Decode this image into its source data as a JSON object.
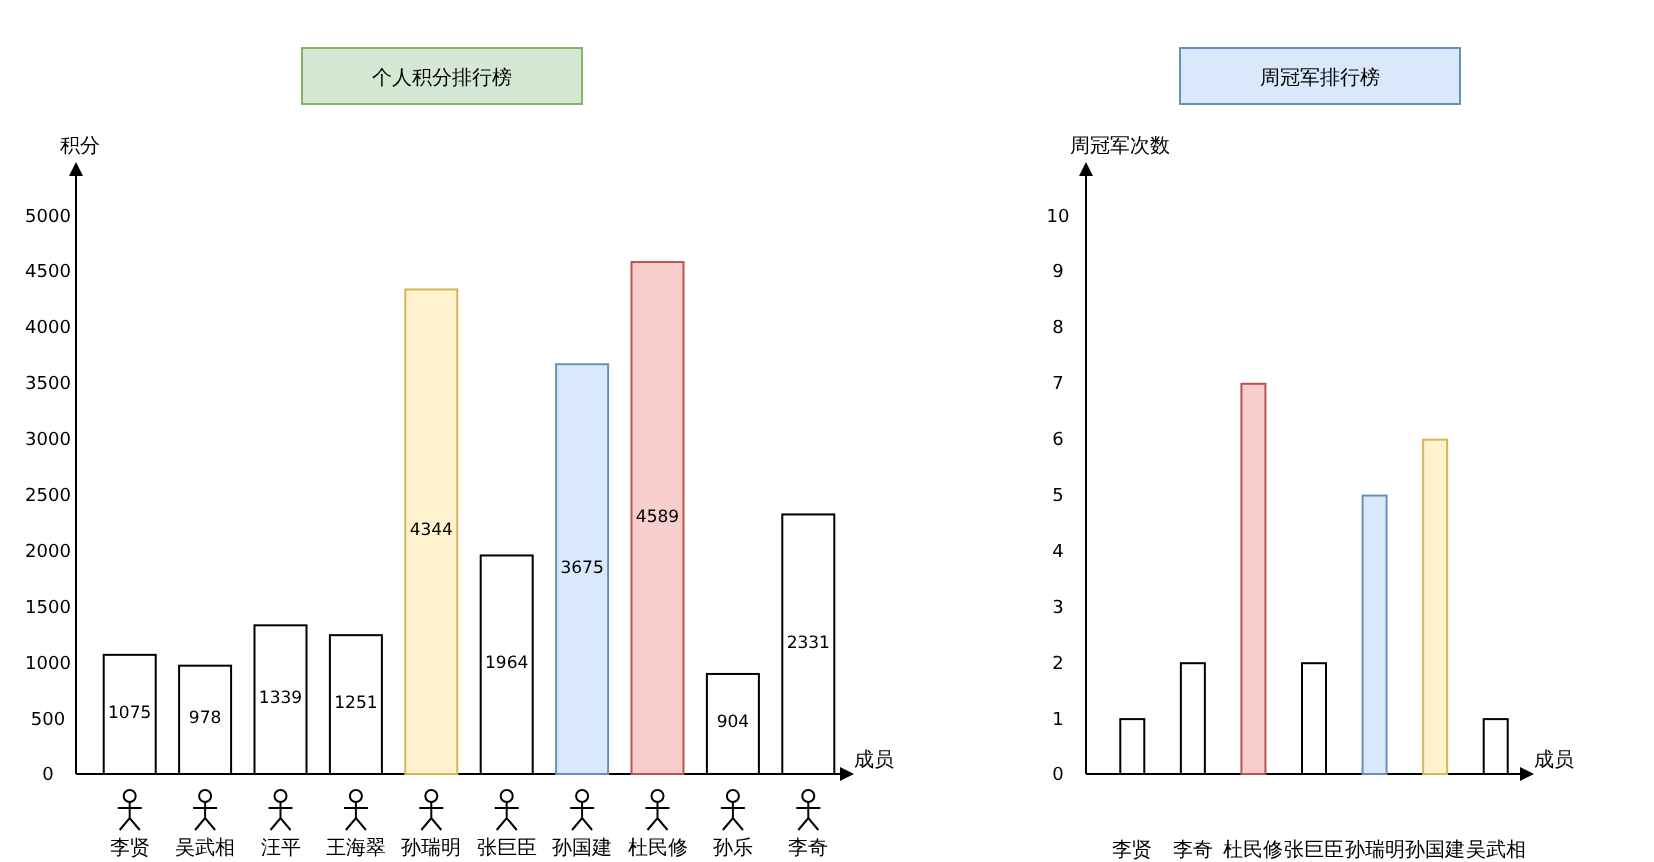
{
  "chart_data": [
    {
      "type": "bar",
      "title": "个人积分排行榜",
      "ylabel": "积分",
      "xlabel": "成员",
      "categories": [
        "李贤",
        "吴武相",
        "汪平",
        "王海翠",
        "孙瑞明",
        "张巨臣",
        "孙国建",
        "杜民修",
        "孙乐",
        "李奇"
      ],
      "values": [
        1075,
        978,
        1339,
        1251,
        4344,
        1964,
        3675,
        4589,
        904,
        2331
      ],
      "colors": [
        "#ffffff",
        "#ffffff",
        "#ffffff",
        "#ffffff",
        "#fff2cc",
        "#ffffff",
        "#dae8fc",
        "#f8cecc",
        "#ffffff",
        "#ffffff"
      ],
      "ylim": [
        0,
        5350
      ],
      "yticks": [
        0,
        500,
        1000,
        1500,
        2000,
        2500,
        3000,
        3500,
        4000,
        4500,
        5000
      ],
      "data_labels": true,
      "grid": false
    },
    {
      "type": "bar",
      "title": "周冠军排行榜",
      "ylabel": "周冠军次数",
      "xlabel": "成员",
      "categories": [
        "李贤",
        "李奇",
        "杜民修",
        "张巨臣",
        "孙瑞明",
        "孙国建",
        "吴武相"
      ],
      "values": [
        1,
        2,
        7,
        2,
        5,
        6,
        1
      ],
      "colors": [
        "#ffffff",
        "#ffffff",
        "#f8cecc",
        "#ffffff",
        "#dae8fc",
        "#fff2cc",
        "#ffffff"
      ],
      "ylim": [
        0,
        10.7
      ],
      "yticks": [
        0,
        1,
        2,
        3,
        4,
        5,
        6,
        7,
        8,
        9,
        10
      ],
      "grid": false
    }
  ]
}
